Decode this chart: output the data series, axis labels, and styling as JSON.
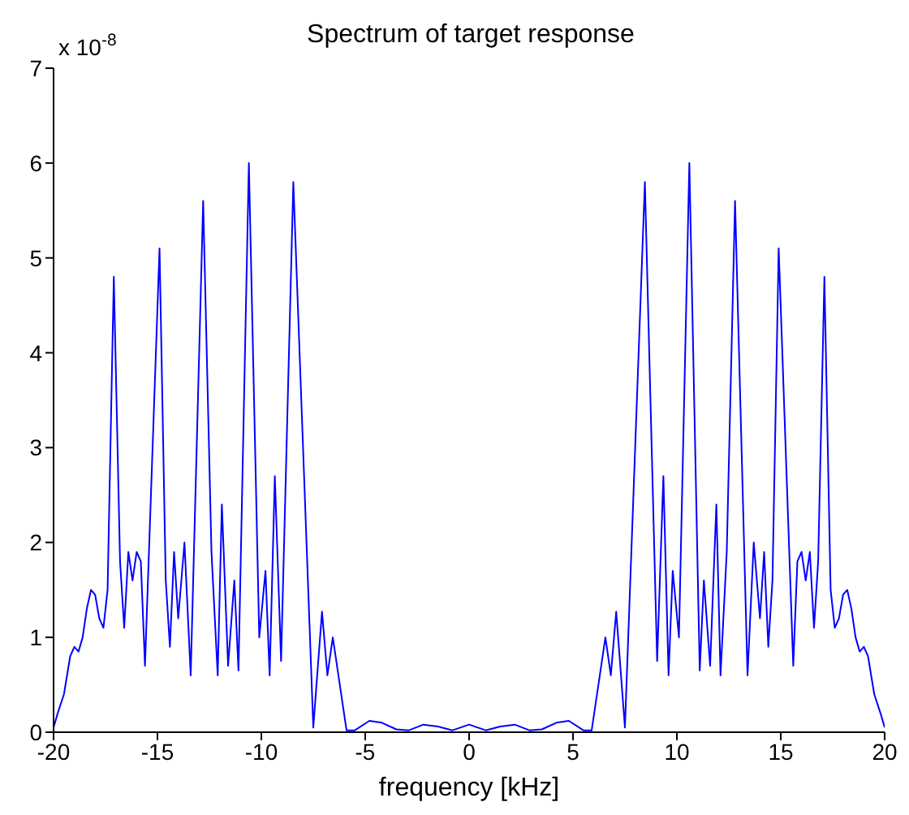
{
  "chart_data": {
    "type": "line",
    "title": "Spectrum of target response",
    "xlabel": "frequency [kHz]",
    "annotations": [
      "x 10$^{-8}$"
    ],
    "x": [
      -20,
      -19.8,
      -19.5,
      -19.2,
      -19.0,
      -18.8,
      -18.6,
      -18.4,
      -18.2,
      -18.0,
      -17.8,
      -17.6,
      -17.4,
      -17.1,
      -16.8,
      -16.6,
      -16.4,
      -16.2,
      -16.0,
      -15.8,
      -15.6,
      -14.9,
      -14.6,
      -14.4,
      -14.2,
      -14.0,
      -13.7,
      -13.4,
      -12.8,
      -12.4,
      -12.1,
      -11.9,
      -11.6,
      -11.3,
      -11.1,
      -10.6,
      -10.1,
      -9.8,
      -9.6,
      -9.35,
      -9.05,
      -8.46,
      -7.5,
      -7.08,
      -6.82,
      -6.56,
      -5.9,
      -5.5,
      -4.8,
      -4.2,
      -3.5,
      -2.9,
      -2.2,
      -1.5,
      -0.8,
      0,
      0.8,
      1.5,
      2.2,
      2.9,
      3.5,
      4.2,
      4.8,
      5.5,
      5.9,
      6.56,
      6.82,
      7.08,
      7.5,
      8.46,
      9.05,
      9.35,
      9.6,
      9.8,
      10.1,
      10.6,
      11.1,
      11.3,
      11.6,
      11.9,
      12.1,
      12.4,
      12.8,
      13.4,
      13.7,
      14.0,
      14.2,
      14.4,
      14.6,
      14.9,
      15.6,
      15.8,
      16.0,
      16.2,
      16.4,
      16.6,
      16.8,
      17.1,
      17.4,
      17.6,
      17.8,
      18.0,
      18.2,
      18.4,
      18.6,
      18.8,
      19.0,
      19.2,
      19.5,
      19.8,
      20
    ],
    "series": [
      {
        "color": "#0000ff",
        "values": [
          0.05,
          0.2,
          0.4,
          0.8,
          0.9,
          0.85,
          1.0,
          1.3,
          1.5,
          1.45,
          1.2,
          1.1,
          1.5,
          4.8,
          1.8,
          1.1,
          1.9,
          1.6,
          1.9,
          1.8,
          0.7,
          5.1,
          1.6,
          0.9,
          1.9,
          1.2,
          2.0,
          0.6,
          5.6,
          1.9,
          0.6,
          2.4,
          0.7,
          1.6,
          0.65,
          6.0,
          1.0,
          1.7,
          0.6,
          2.7,
          0.75,
          5.8,
          0.05,
          1.27,
          0.6,
          1.0,
          0.02,
          0.02,
          0.12,
          0.1,
          0.03,
          0.02,
          0.08,
          0.06,
          0.02,
          0.08,
          0.02,
          0.06,
          0.08,
          0.02,
          0.03,
          0.1,
          0.12,
          0.02,
          0.02,
          1.0,
          0.6,
          1.27,
          0.05,
          5.8,
          0.75,
          2.7,
          0.6,
          1.7,
          1.0,
          6.0,
          0.65,
          1.6,
          0.7,
          2.4,
          0.6,
          1.9,
          5.6,
          0.6,
          2.0,
          1.2,
          1.9,
          0.9,
          1.6,
          5.1,
          0.7,
          1.8,
          1.9,
          1.6,
          1.9,
          1.1,
          1.8,
          4.8,
          1.5,
          1.1,
          1.2,
          1.45,
          1.5,
          1.3,
          1.0,
          0.85,
          0.9,
          0.8,
          0.4,
          0.2,
          0.05
        ]
      }
    ],
    "xlim": [
      -20,
      20
    ],
    "xticks": [
      -20,
      -15,
      -10,
      -5,
      0,
      5,
      10,
      15,
      20
    ],
    "ylim": [
      0,
      7
    ],
    "yticks": [
      0,
      1,
      2,
      3,
      4,
      5,
      6,
      7
    ],
    "grid": false,
    "legend": false,
    "marker": "none",
    "line_style": "solid"
  }
}
